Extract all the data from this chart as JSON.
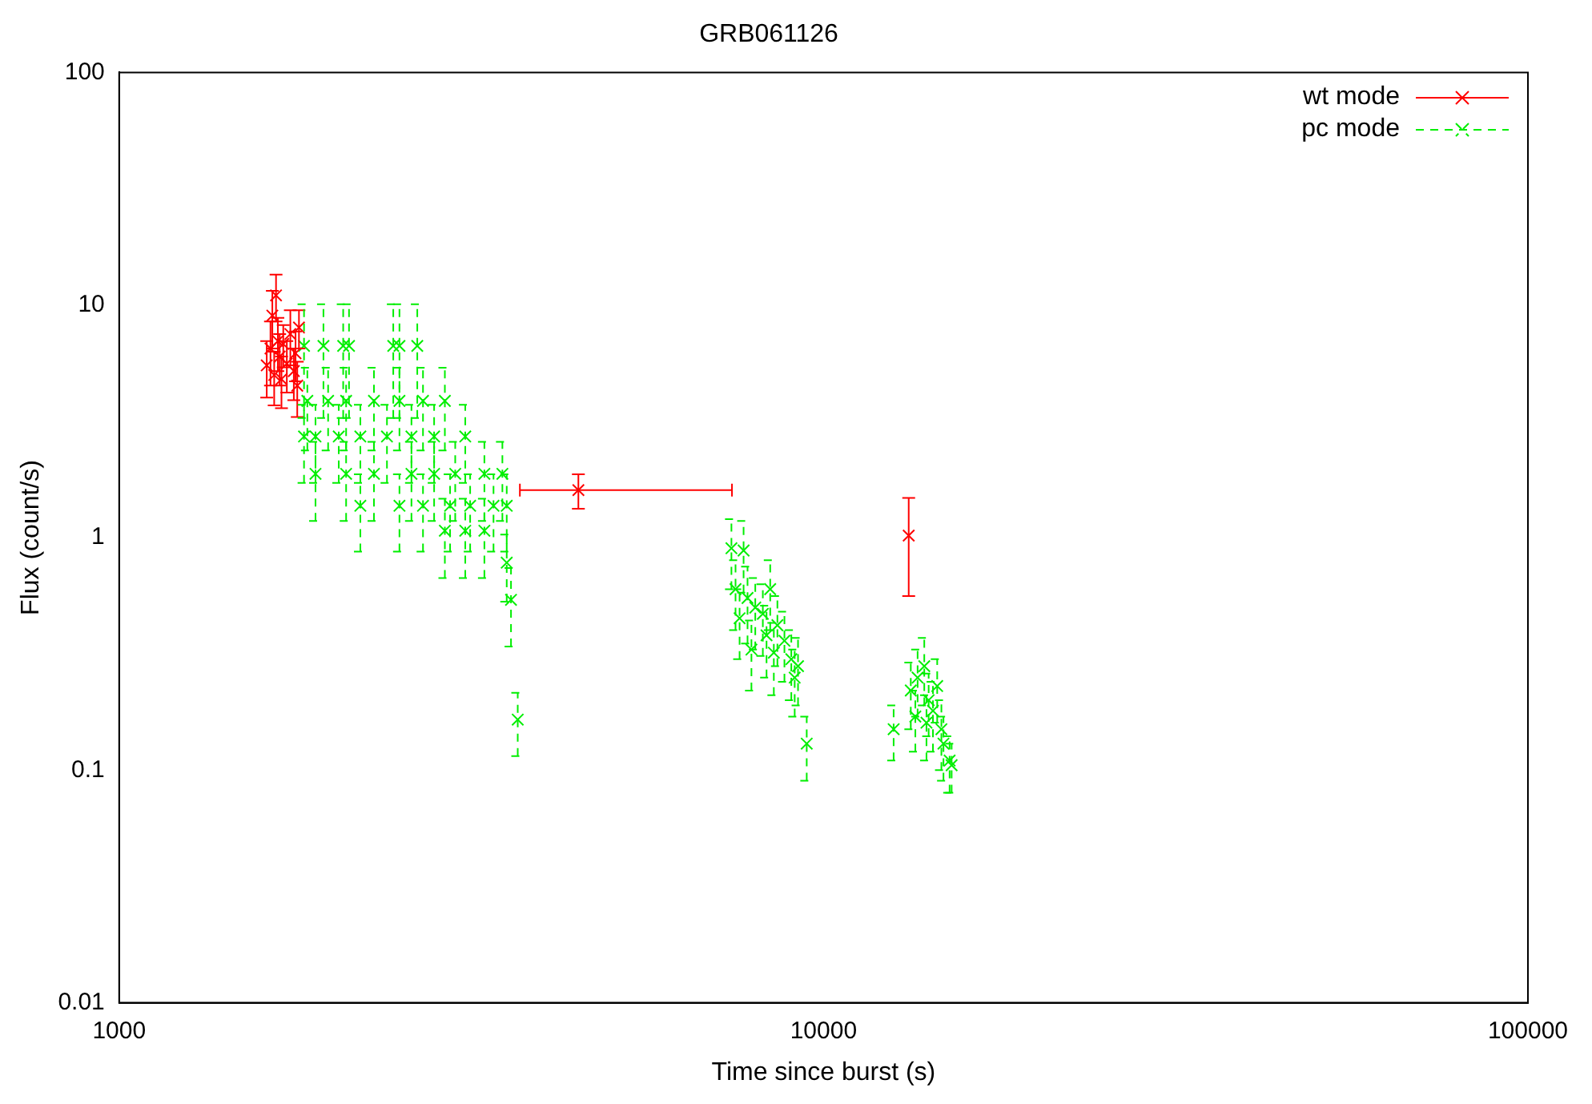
{
  "chart_data": {
    "type": "scatter",
    "title": "GRB061126",
    "xlabel": "Time since burst (s)",
    "ylabel": "Flux (count/s)",
    "log": "xy",
    "xlim": [
      1000,
      100000
    ],
    "xticks": [
      1000,
      10000,
      100000
    ],
    "ylim": [
      0.01,
      100
    ],
    "yticks": [
      0.01,
      0.1,
      1,
      10,
      100
    ],
    "grid": false,
    "legend": "top right",
    "marker": "cross",
    "series": [
      {
        "name": "wt mode",
        "color": "#ff0000",
        "line_style": "solid",
        "x": [
          1620,
          1640,
          1650,
          1660,
          1670,
          1680,
          1690,
          1700,
          1710,
          1730,
          1750,
          1770,
          1780,
          1790,
          1800,
          4487,
          13210
        ],
        "values": [
          5.5,
          6.5,
          9,
          5,
          11,
          7,
          6,
          4.8,
          6.8,
          5.6,
          7.5,
          5.2,
          6.2,
          4.5,
          8,
          1.6,
          1.02
        ],
        "errors": [
          1.5,
          2,
          2.5,
          1.3,
          2.5,
          1.8,
          1.5,
          1.2,
          1.4,
          1.4,
          2,
          1.3,
          1.5,
          1.2,
          1.5,
          0.27,
          0.46
        ],
        "xerrors": [
          null,
          null,
          null,
          null,
          null,
          null,
          null,
          null,
          null,
          null,
          null,
          null,
          null,
          null,
          null,
          [
            3706,
            7413
          ],
          null
        ]
      },
      {
        "name": "pc mode",
        "color": "#00ee00",
        "line_style": "dashed",
        "x": [
          1830,
          1950,
          2080,
          2120,
          2450,
          2500,
          2650,
          1850,
          1980,
          2100,
          2300,
          2500,
          2700,
          2900,
          1830,
          1900,
          2050,
          2200,
          2400,
          2600,
          2800,
          3100,
          1900,
          2100,
          2300,
          2600,
          2800,
          3000,
          3300,
          3500,
          2200,
          2500,
          2700,
          2950,
          3150,
          3400,
          3550,
          2900,
          3100,
          3300,
          3550,
          3600,
          3680,
          7400,
          7700,
          7500,
          7800,
          8000,
          7600,
          8200,
          8400,
          8600,
          8300,
          8800,
          9000,
          9200,
          9100,
          7900,
          8500,
          9465,
          12575,
          13300,
          13600,
          13900,
          14100,
          14300,
          14500,
          14700,
          14000,
          13500,
          14800,
          15100,
          15200
        ],
        "values": [
          6.67,
          6.67,
          6.67,
          6.67,
          6.67,
          6.67,
          6.67,
          3.87,
          3.87,
          3.87,
          3.87,
          3.87,
          3.87,
          3.87,
          2.72,
          2.72,
          2.72,
          2.72,
          2.72,
          2.72,
          2.72,
          2.72,
          1.88,
          1.88,
          1.88,
          1.88,
          1.88,
          1.88,
          1.88,
          1.88,
          1.37,
          1.37,
          1.37,
          1.37,
          1.37,
          1.37,
          1.37,
          1.07,
          1.07,
          1.07,
          0.78,
          0.54,
          0.165,
          0.9,
          0.88,
          0.6,
          0.55,
          0.5,
          0.45,
          0.47,
          0.6,
          0.42,
          0.38,
          0.36,
          0.3,
          0.28,
          0.25,
          0.33,
          0.32,
          0.13,
          0.15,
          0.22,
          0.25,
          0.28,
          0.2,
          0.18,
          0.23,
          0.15,
          0.16,
          0.17,
          0.13,
          0.11,
          0.105
        ],
        "errors": [
          3.4,
          3.4,
          3.4,
          3.4,
          3.4,
          3.4,
          3.4,
          1.5,
          1.5,
          1.5,
          1.5,
          1.5,
          1.5,
          1.5,
          1.0,
          1.0,
          1.0,
          1.0,
          1.0,
          1.0,
          1.0,
          1.0,
          0.7,
          0.7,
          0.7,
          0.7,
          0.7,
          0.7,
          0.7,
          0.7,
          0.5,
          0.5,
          0.5,
          0.5,
          0.5,
          0.5,
          0.5,
          0.4,
          0.4,
          0.4,
          0.25,
          0.2,
          0.05,
          0.3,
          0.3,
          0.2,
          0.2,
          0.17,
          0.15,
          0.16,
          0.2,
          0.14,
          0.13,
          0.12,
          0.1,
          0.09,
          0.08,
          0.11,
          0.11,
          0.04,
          0.04,
          0.07,
          0.08,
          0.09,
          0.06,
          0.06,
          0.07,
          0.05,
          0.05,
          0.05,
          0.04,
          0.03,
          0.025
        ]
      }
    ]
  }
}
